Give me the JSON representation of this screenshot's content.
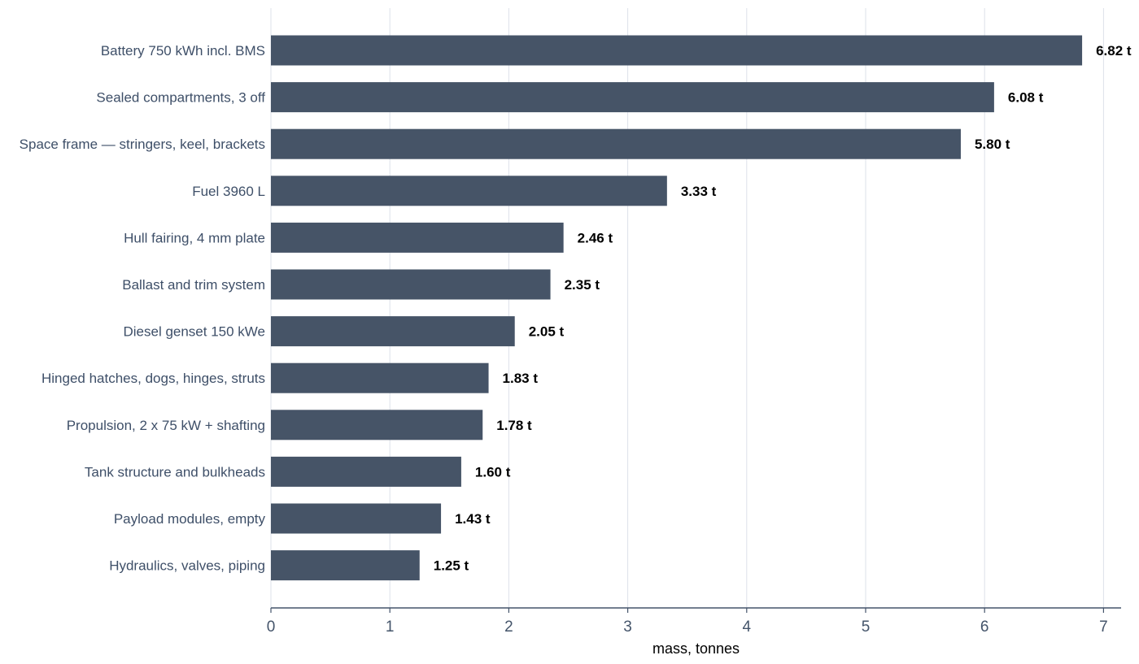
{
  "chart_data": {
    "type": "bar",
    "orientation": "horizontal",
    "categories": [
      "Battery 750 kWh incl. BMS",
      "Sealed compartments, 3 off",
      "Space frame — stringers, keel, brackets",
      "Fuel 3960 L",
      "Hull fairing, 4 mm plate",
      "Ballast and trim system",
      "Diesel genset 150 kWe",
      "Hinged hatches, dogs, hinges, struts",
      "Propulsion, 2 x 75 kW + shafting",
      "Tank structure and bulkheads",
      "Payload modules, empty",
      "Hydraulics, valves, piping"
    ],
    "values": [
      6.82,
      6.08,
      5.8,
      3.33,
      2.46,
      2.35,
      2.05,
      1.83,
      1.78,
      1.6,
      1.43,
      1.25
    ],
    "value_labels": [
      "6.82 t",
      "6.08 t",
      "5.80 t",
      "3.33 t",
      "2.46 t",
      "2.35 t",
      "2.05 t",
      "1.83 t",
      "1.78 t",
      "1.60 t",
      "1.43 t",
      "1.25 t"
    ],
    "title": "",
    "xlabel": "mass, tonnes",
    "ylabel": "",
    "xlim": [
      0,
      7.16
    ],
    "xticks": [
      0,
      1,
      2,
      3,
      4,
      5,
      6,
      7
    ],
    "xtick_labels": [
      "0",
      "1",
      "2",
      "3",
      "4",
      "5",
      "6",
      "7"
    ],
    "grid": "vertical",
    "legend": "none",
    "colors": {
      "bar": "#465467",
      "grid": "#dde1ea",
      "axis": "#44546a",
      "category_text": "#3e4f68",
      "value_text": "#000000"
    }
  }
}
